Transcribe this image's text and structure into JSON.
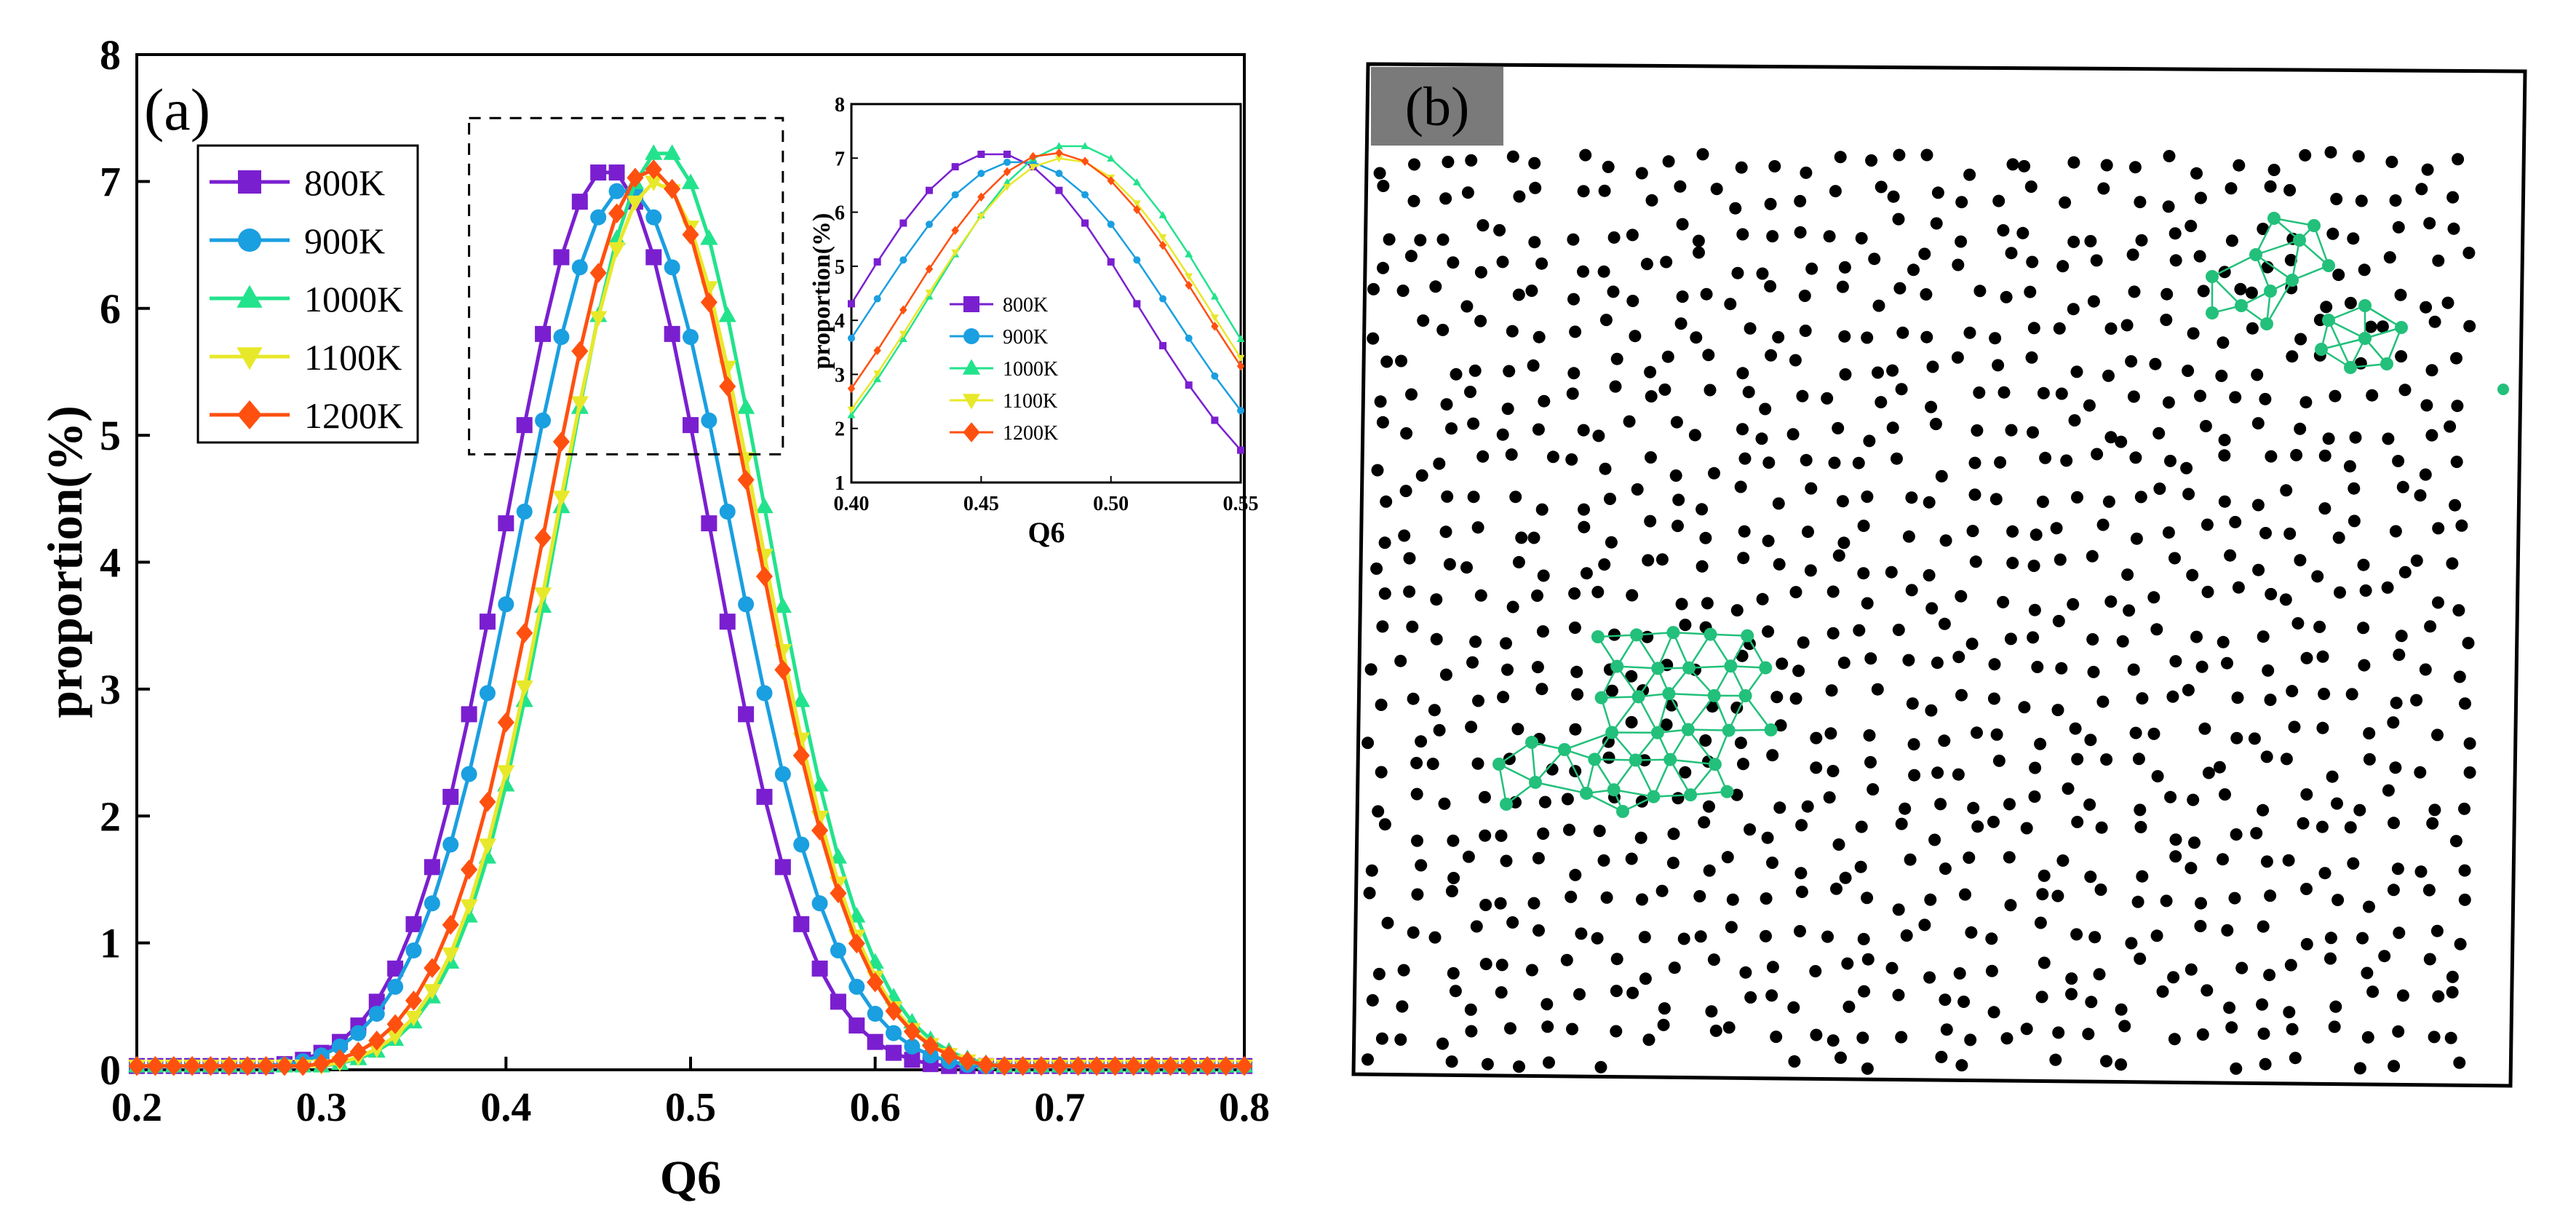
{
  "chart_data": [
    {
      "type": "line",
      "panel_label": "(a)",
      "title": "",
      "xlabel": "Q6",
      "ylabel": "proportion(%)",
      "xlim": [
        0.2,
        0.8
      ],
      "ylim": [
        0,
        8
      ],
      "xticks": [
        "0.2",
        "0.3",
        "0.4",
        "0.5",
        "0.6",
        "0.7",
        "0.8"
      ],
      "yticks": [
        "0",
        "1",
        "2",
        "3",
        "4",
        "5",
        "6",
        "7",
        "8"
      ],
      "legend_position": "top-left",
      "zoom_box": {
        "xrange": [
          0.38,
          0.55
        ],
        "yrange": [
          4.85,
          7.5
        ]
      },
      "series": [
        {
          "name": "800K",
          "color": "#7a1fd0",
          "marker": "square",
          "mu": 0.455,
          "sigma": 0.055,
          "peak": 7.1
        },
        {
          "name": "900K",
          "color": "#1a9fe0",
          "marker": "circle",
          "mu": 0.465,
          "sigma": 0.0575,
          "peak": 6.95
        },
        {
          "name": "1000K",
          "color": "#22e38c",
          "marker": "triangle-up",
          "mu": 0.485,
          "sigma": 0.0555,
          "peak": 7.25
        },
        {
          "name": "1100K",
          "color": "#e8e82a",
          "marker": "triangle-down",
          "mu": 0.482,
          "sigma": 0.0555,
          "peak": 7.0
        },
        {
          "name": "1200K",
          "color": "#ff5010",
          "marker": "diamond",
          "mu": 0.478,
          "sigma": 0.0565,
          "peak": 7.1
        }
      ],
      "x_sampling": {
        "start": 0.2,
        "end": 0.8,
        "step": 0.01
      }
    },
    {
      "type": "line",
      "panel_label": "inset",
      "xlabel": "Q6",
      "ylabel": "proportion(%)",
      "xlim": [
        0.4,
        0.55
      ],
      "ylim": [
        1,
        8
      ],
      "xticks": [
        "0.40",
        "0.45",
        "0.50",
        "0.55"
      ],
      "yticks": [
        "1",
        "2",
        "3",
        "4",
        "5",
        "6",
        "7",
        "8"
      ],
      "legend_position": "bottom-center",
      "x_sampling": {
        "start": 0.4,
        "end": 0.55,
        "step": 0.01
      }
    }
  ],
  "panel_b": {
    "panel_label": "(b)",
    "atom_color": "#000000",
    "cluster_color": "#22c07a"
  }
}
